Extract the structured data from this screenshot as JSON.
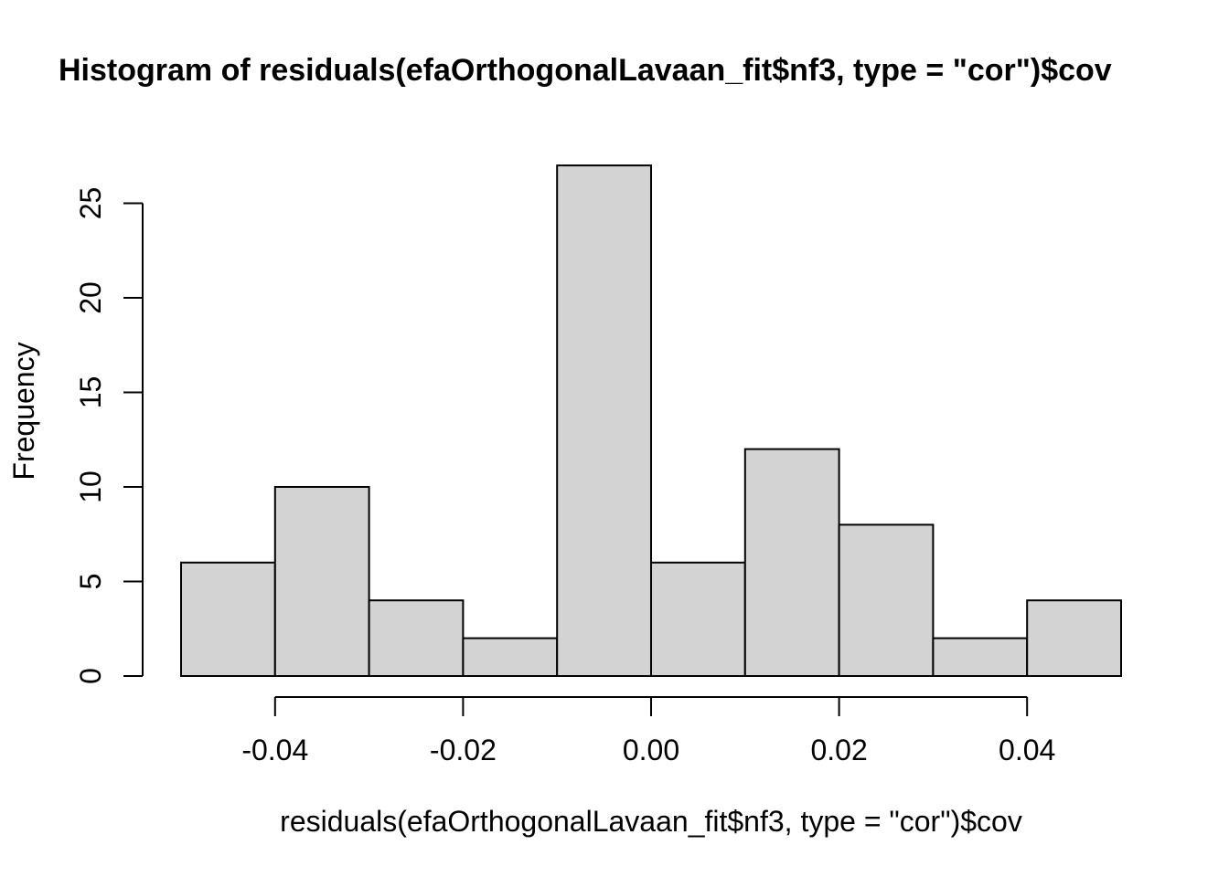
{
  "chart_data": {
    "type": "bar",
    "subtype": "histogram",
    "title": "Histogram of residuals(efaOrthogonalLavaan_fit$nf3, type = \"cor\")$cov",
    "xlabel": "residuals(efaOrthogonalLavaan_fit$nf3, type = \"cor\")$cov",
    "ylabel": "Frequency",
    "bin_edges": [
      -0.05,
      -0.04,
      -0.03,
      -0.02,
      -0.01,
      0.0,
      0.01,
      0.02,
      0.03,
      0.04,
      0.05
    ],
    "counts": [
      6,
      10,
      4,
      2,
      27,
      6,
      12,
      8,
      2,
      4
    ],
    "x_ticks": [
      -0.04,
      -0.02,
      0.0,
      0.02,
      0.04
    ],
    "x_tick_labels": [
      "-0.04",
      "-0.02",
      "0.00",
      "0.02",
      "0.04"
    ],
    "y_ticks": [
      0,
      5,
      10,
      15,
      20,
      25
    ],
    "y_tick_labels": [
      "0",
      "5",
      "10",
      "15",
      "20",
      "25"
    ],
    "xlim": [
      -0.05,
      0.05
    ],
    "ylim": [
      0,
      27
    ],
    "grid": false,
    "legend": false,
    "bar_fill": "#D3D3D3",
    "bar_stroke": "#000000",
    "axis_color": "#000000",
    "background": "#FFFFFF"
  }
}
